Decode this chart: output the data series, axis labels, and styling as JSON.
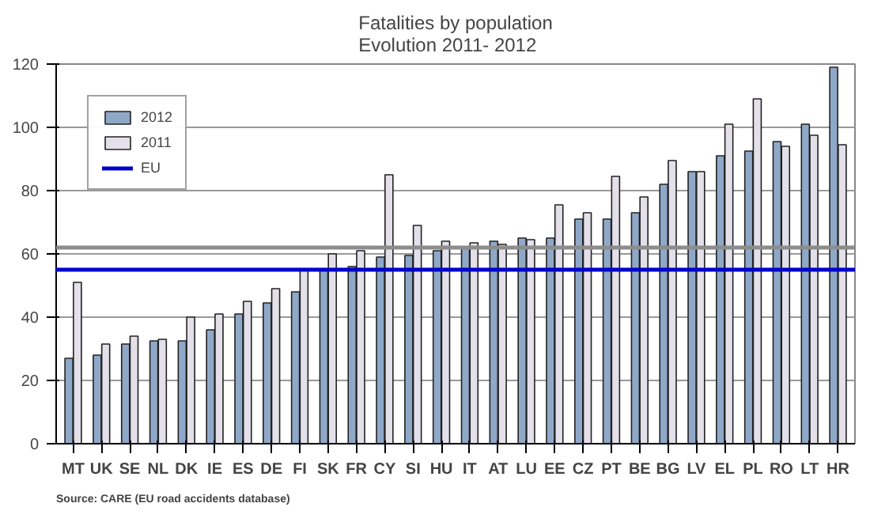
{
  "chart_data": {
    "type": "bar",
    "title": "Fatalities by population\nEvolution 2011- 2012",
    "categories": [
      "MT",
      "UK",
      "SE",
      "NL",
      "DK",
      "IE",
      "ES",
      "DE",
      "FI",
      "SK",
      "FR",
      "CY",
      "SI",
      "HU",
      "IT",
      "AT",
      "LU",
      "EE",
      "CZ",
      "PT",
      "BE",
      "BG",
      "LV",
      "EL",
      "PL",
      "RO",
      "LT",
      "HR"
    ],
    "series": [
      {
        "name": "2012",
        "color": "#8fa8c8",
        "values": [
          27,
          28,
          31.5,
          32.5,
          32.5,
          36,
          41,
          44.5,
          48,
          55,
          56,
          59,
          59.5,
          61,
          62,
          64,
          65,
          65,
          71,
          71,
          73,
          82,
          86,
          91,
          92.5,
          95.5,
          101,
          119
        ]
      },
      {
        "name": "2011",
        "color": "#e4e0ea",
        "values": [
          51,
          31.5,
          34,
          33,
          40,
          41,
          45,
          49,
          55,
          60,
          61,
          85,
          69,
          64,
          63.5,
          63,
          64.5,
          75.5,
          73,
          84.5,
          78,
          89.5,
          86,
          101,
          109,
          94,
          97.5,
          94.5
        ]
      }
    ],
    "ref_lines": [
      {
        "axis": "y",
        "value": 55,
        "label": "EU",
        "color": "#0000cc"
      },
      {
        "axis": "y",
        "value": 62,
        "label": null,
        "color": "#8c8c8c"
      }
    ],
    "ylim": [
      0,
      120
    ],
    "yticks": [
      0,
      20,
      40,
      60,
      80,
      100,
      120
    ],
    "grid": "y",
    "legend": "top left",
    "annotations": [
      "Source: CARE  (EU  road accidents database)"
    ]
  }
}
